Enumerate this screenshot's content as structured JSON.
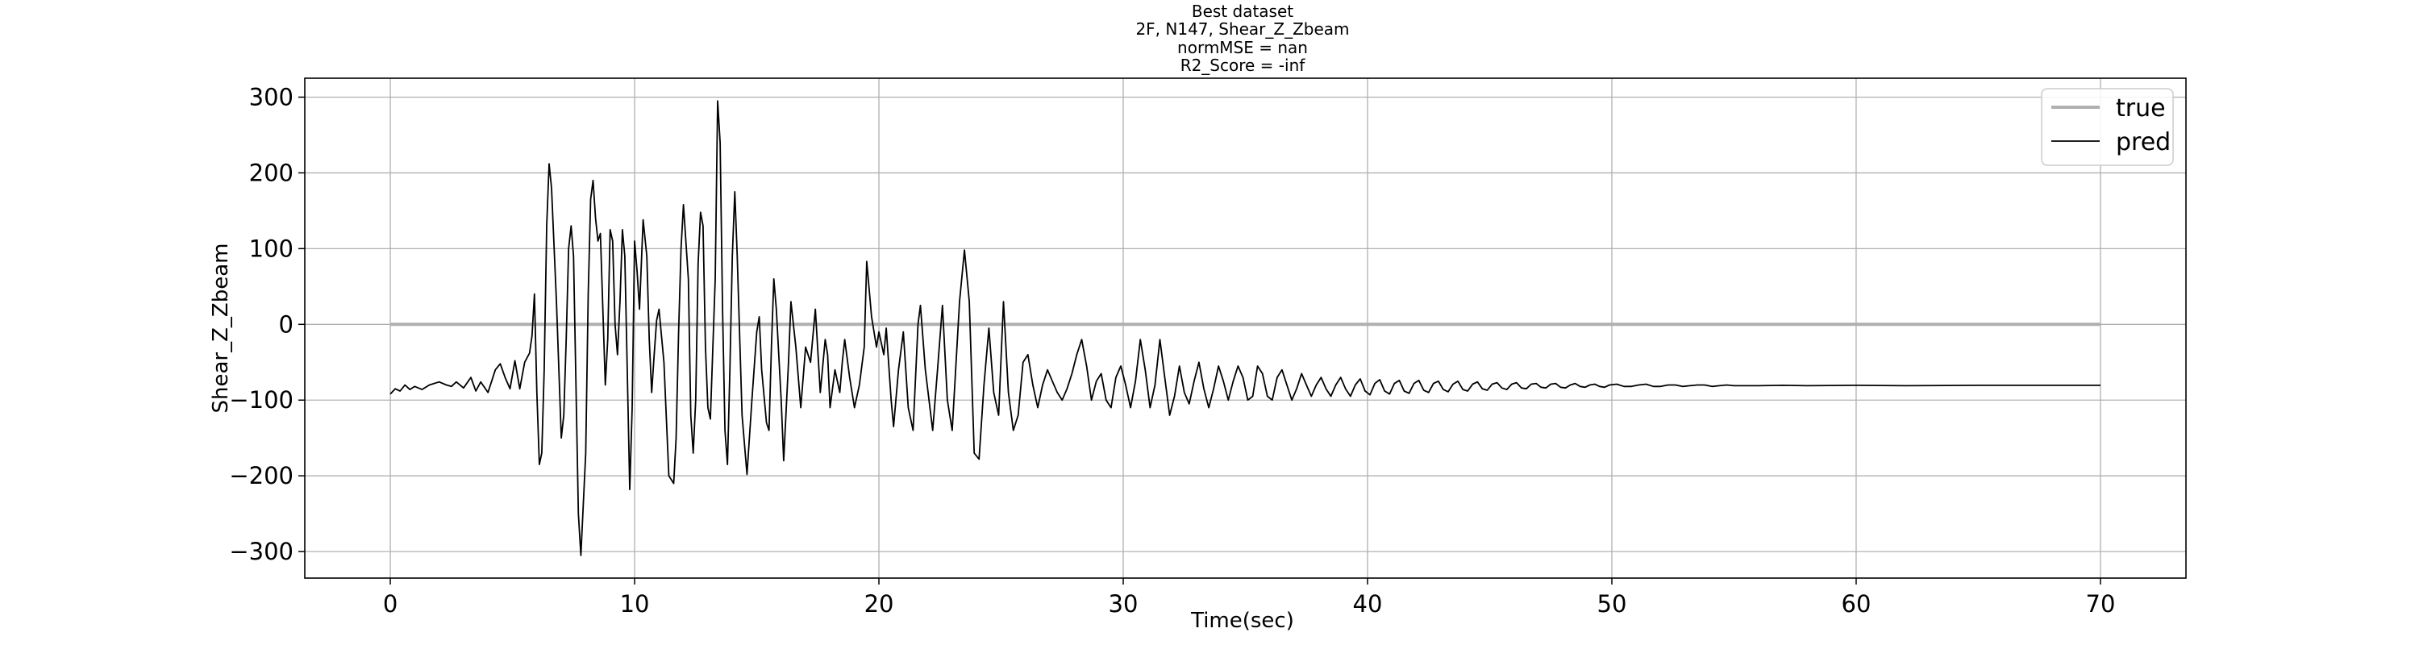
{
  "chart_data": {
    "type": "line",
    "title_lines": [
      "Best dataset",
      "2F, N147, Shear_Z_Zbeam",
      "normMSE = nan",
      "R2_Score = -inf"
    ],
    "xlabel": "Time(sec)",
    "ylabel": "Shear_Z_Zbeam",
    "xlim": [
      -3.5,
      73.5
    ],
    "ylim": [
      -335,
      325
    ],
    "xticks": [
      0,
      10,
      20,
      30,
      40,
      50,
      60,
      70
    ],
    "yticks": [
      -300,
      -200,
      -100,
      0,
      100,
      200,
      300
    ],
    "xtick_labels": [
      "0",
      "10",
      "20",
      "30",
      "40",
      "50",
      "60",
      "70"
    ],
    "ytick_labels": [
      "−300",
      "−200",
      "−100",
      "0",
      "100",
      "200",
      "300"
    ],
    "grid": true,
    "legend_position": "top-right",
    "series": [
      {
        "name": "true",
        "color": "#b0b0b0",
        "points": [
          [
            0,
            0
          ],
          [
            70,
            0
          ]
        ]
      },
      {
        "name": "pred",
        "color": "#000000",
        "points": [
          [
            0.0,
            -92
          ],
          [
            0.2,
            -85
          ],
          [
            0.4,
            -88
          ],
          [
            0.6,
            -80
          ],
          [
            0.8,
            -86
          ],
          [
            1.0,
            -82
          ],
          [
            1.3,
            -86
          ],
          [
            1.6,
            -80
          ],
          [
            2.0,
            -76
          ],
          [
            2.3,
            -80
          ],
          [
            2.5,
            -82
          ],
          [
            2.7,
            -76
          ],
          [
            3.0,
            -84
          ],
          [
            3.3,
            -70
          ],
          [
            3.5,
            -88
          ],
          [
            3.7,
            -76
          ],
          [
            4.0,
            -90
          ],
          [
            4.3,
            -60
          ],
          [
            4.5,
            -52
          ],
          [
            4.7,
            -70
          ],
          [
            4.9,
            -85
          ],
          [
            5.1,
            -48
          ],
          [
            5.3,
            -85
          ],
          [
            5.5,
            -50
          ],
          [
            5.7,
            -38
          ],
          [
            5.8,
            -15
          ],
          [
            5.9,
            40
          ],
          [
            6.0,
            -90
          ],
          [
            6.1,
            -185
          ],
          [
            6.2,
            -170
          ],
          [
            6.3,
            -60
          ],
          [
            6.4,
            130
          ],
          [
            6.5,
            212
          ],
          [
            6.6,
            180
          ],
          [
            6.8,
            30
          ],
          [
            7.0,
            -150
          ],
          [
            7.1,
            -120
          ],
          [
            7.2,
            -20
          ],
          [
            7.3,
            100
          ],
          [
            7.4,
            130
          ],
          [
            7.5,
            90
          ],
          [
            7.7,
            -250
          ],
          [
            7.8,
            -305
          ],
          [
            8.0,
            -170
          ],
          [
            8.1,
            40
          ],
          [
            8.2,
            165
          ],
          [
            8.3,
            190
          ],
          [
            8.4,
            140
          ],
          [
            8.5,
            110
          ],
          [
            8.6,
            120
          ],
          [
            8.8,
            -80
          ],
          [
            8.9,
            -20
          ],
          [
            9.0,
            125
          ],
          [
            9.1,
            110
          ],
          [
            9.2,
            0
          ],
          [
            9.3,
            -40
          ],
          [
            9.4,
            30
          ],
          [
            9.5,
            125
          ],
          [
            9.6,
            90
          ],
          [
            9.7,
            -60
          ],
          [
            9.8,
            -218
          ],
          [
            9.9,
            -110
          ],
          [
            10.0,
            110
          ],
          [
            10.1,
            70
          ],
          [
            10.2,
            20
          ],
          [
            10.35,
            138
          ],
          [
            10.5,
            90
          ],
          [
            10.6,
            -20
          ],
          [
            10.7,
            -90
          ],
          [
            10.8,
            -40
          ],
          [
            10.9,
            5
          ],
          [
            11.0,
            20
          ],
          [
            11.2,
            -50
          ],
          [
            11.4,
            -200
          ],
          [
            11.6,
            -210
          ],
          [
            11.7,
            -150
          ],
          [
            11.8,
            -10
          ],
          [
            11.9,
            100
          ],
          [
            12.0,
            158
          ],
          [
            12.2,
            60
          ],
          [
            12.3,
            -120
          ],
          [
            12.4,
            -170
          ],
          [
            12.5,
            -100
          ],
          [
            12.6,
            80
          ],
          [
            12.7,
            148
          ],
          [
            12.8,
            130
          ],
          [
            12.9,
            -30
          ],
          [
            13.0,
            -110
          ],
          [
            13.1,
            -125
          ],
          [
            13.3,
            60
          ],
          [
            13.4,
            295
          ],
          [
            13.5,
            240
          ],
          [
            13.6,
            20
          ],
          [
            13.7,
            -140
          ],
          [
            13.8,
            -185
          ],
          [
            13.9,
            -60
          ],
          [
            14.0,
            90
          ],
          [
            14.1,
            175
          ],
          [
            14.2,
            90
          ],
          [
            14.4,
            -120
          ],
          [
            14.6,
            -198
          ],
          [
            14.8,
            -100
          ],
          [
            15.0,
            -10
          ],
          [
            15.1,
            10
          ],
          [
            15.2,
            -60
          ],
          [
            15.4,
            -130
          ],
          [
            15.5,
            -140
          ],
          [
            15.6,
            -30
          ],
          [
            15.7,
            60
          ],
          [
            15.8,
            20
          ],
          [
            15.9,
            -40
          ],
          [
            16.0,
            -100
          ],
          [
            16.1,
            -180
          ],
          [
            16.3,
            -50
          ],
          [
            16.4,
            30
          ],
          [
            16.6,
            -30
          ],
          [
            16.8,
            -110
          ],
          [
            17.0,
            -30
          ],
          [
            17.2,
            -50
          ],
          [
            17.4,
            20
          ],
          [
            17.6,
            -90
          ],
          [
            17.8,
            -20
          ],
          [
            17.9,
            -40
          ],
          [
            18.0,
            -110
          ],
          [
            18.2,
            -60
          ],
          [
            18.4,
            -90
          ],
          [
            18.5,
            -50
          ],
          [
            18.6,
            -20
          ],
          [
            18.8,
            -70
          ],
          [
            19.0,
            -110
          ],
          [
            19.2,
            -80
          ],
          [
            19.4,
            -30
          ],
          [
            19.5,
            83
          ],
          [
            19.7,
            10
          ],
          [
            19.9,
            -30
          ],
          [
            20.0,
            -10
          ],
          [
            20.2,
            -40
          ],
          [
            20.3,
            -5
          ],
          [
            20.5,
            -100
          ],
          [
            20.6,
            -135
          ],
          [
            20.8,
            -60
          ],
          [
            21.0,
            -10
          ],
          [
            21.2,
            -110
          ],
          [
            21.4,
            -140
          ],
          [
            21.6,
            0
          ],
          [
            21.7,
            25
          ],
          [
            21.9,
            -60
          ],
          [
            22.2,
            -140
          ],
          [
            22.4,
            -60
          ],
          [
            22.6,
            25
          ],
          [
            22.8,
            -100
          ],
          [
            23.0,
            -140
          ],
          [
            23.3,
            30
          ],
          [
            23.5,
            98
          ],
          [
            23.7,
            30
          ],
          [
            23.9,
            -170
          ],
          [
            24.1,
            -178
          ],
          [
            24.3,
            -80
          ],
          [
            24.5,
            -5
          ],
          [
            24.7,
            -90
          ],
          [
            24.9,
            -120
          ],
          [
            25.1,
            30
          ],
          [
            25.3,
            -90
          ],
          [
            25.5,
            -140
          ],
          [
            25.7,
            -120
          ],
          [
            25.9,
            -50
          ],
          [
            26.1,
            -40
          ],
          [
            26.3,
            -80
          ],
          [
            26.5,
            -110
          ],
          [
            26.7,
            -80
          ],
          [
            26.9,
            -60
          ],
          [
            27.1,
            -75
          ],
          [
            27.3,
            -90
          ],
          [
            27.5,
            -100
          ],
          [
            27.7,
            -85
          ],
          [
            27.9,
            -65
          ],
          [
            28.1,
            -40
          ],
          [
            28.3,
            -20
          ],
          [
            28.5,
            -55
          ],
          [
            28.7,
            -100
          ],
          [
            28.9,
            -75
          ],
          [
            29.1,
            -65
          ],
          [
            29.3,
            -100
          ],
          [
            29.5,
            -110
          ],
          [
            29.7,
            -70
          ],
          [
            29.9,
            -55
          ],
          [
            30.1,
            -80
          ],
          [
            30.3,
            -110
          ],
          [
            30.5,
            -75
          ],
          [
            30.7,
            -20
          ],
          [
            30.9,
            -60
          ],
          [
            31.1,
            -110
          ],
          [
            31.3,
            -80
          ],
          [
            31.5,
            -20
          ],
          [
            31.7,
            -70
          ],
          [
            31.9,
            -120
          ],
          [
            32.1,
            -95
          ],
          [
            32.3,
            -55
          ],
          [
            32.5,
            -90
          ],
          [
            32.7,
            -105
          ],
          [
            32.9,
            -75
          ],
          [
            33.1,
            -50
          ],
          [
            33.3,
            -85
          ],
          [
            33.5,
            -110
          ],
          [
            33.7,
            -85
          ],
          [
            33.9,
            -55
          ],
          [
            34.1,
            -75
          ],
          [
            34.3,
            -100
          ],
          [
            34.5,
            -75
          ],
          [
            34.7,
            -55
          ],
          [
            34.9,
            -70
          ],
          [
            35.1,
            -100
          ],
          [
            35.3,
            -95
          ],
          [
            35.5,
            -55
          ],
          [
            35.7,
            -65
          ],
          [
            35.9,
            -95
          ],
          [
            36.1,
            -100
          ],
          [
            36.3,
            -70
          ],
          [
            36.5,
            -60
          ],
          [
            36.7,
            -80
          ],
          [
            36.9,
            -100
          ],
          [
            37.1,
            -85
          ],
          [
            37.3,
            -65
          ],
          [
            37.5,
            -80
          ],
          [
            37.7,
            -95
          ],
          [
            37.9,
            -80
          ],
          [
            38.1,
            -70
          ],
          [
            38.3,
            -85
          ],
          [
            38.5,
            -95
          ],
          [
            38.7,
            -80
          ],
          [
            38.9,
            -70
          ],
          [
            39.1,
            -85
          ],
          [
            39.3,
            -95
          ],
          [
            39.5,
            -80
          ],
          [
            39.7,
            -72
          ],
          [
            39.9,
            -88
          ],
          [
            40.1,
            -93
          ],
          [
            40.3,
            -78
          ],
          [
            40.5,
            -73
          ],
          [
            40.7,
            -88
          ],
          [
            40.9,
            -92
          ],
          [
            41.1,
            -78
          ],
          [
            41.3,
            -74
          ],
          [
            41.5,
            -88
          ],
          [
            41.7,
            -91
          ],
          [
            41.9,
            -78
          ],
          [
            42.1,
            -74
          ],
          [
            42.3,
            -87
          ],
          [
            42.5,
            -90
          ],
          [
            42.7,
            -78
          ],
          [
            42.9,
            -75
          ],
          [
            43.1,
            -86
          ],
          [
            43.3,
            -89
          ],
          [
            43.5,
            -79
          ],
          [
            43.7,
            -75
          ],
          [
            43.9,
            -86
          ],
          [
            44.1,
            -88
          ],
          [
            44.3,
            -79
          ],
          [
            44.5,
            -76
          ],
          [
            44.7,
            -85
          ],
          [
            44.9,
            -87
          ],
          [
            45.1,
            -79
          ],
          [
            45.3,
            -77
          ],
          [
            45.5,
            -84
          ],
          [
            45.7,
            -86
          ],
          [
            45.9,
            -79
          ],
          [
            46.1,
            -77
          ],
          [
            46.3,
            -84
          ],
          [
            46.5,
            -85
          ],
          [
            46.7,
            -79
          ],
          [
            46.9,
            -78
          ],
          [
            47.1,
            -83
          ],
          [
            47.3,
            -84
          ],
          [
            47.5,
            -79
          ],
          [
            47.7,
            -78
          ],
          [
            47.9,
            -83
          ],
          [
            48.1,
            -84
          ],
          [
            48.3,
            -80
          ],
          [
            48.5,
            -78
          ],
          [
            48.7,
            -82
          ],
          [
            48.9,
            -83
          ],
          [
            49.1,
            -80
          ],
          [
            49.3,
            -79
          ],
          [
            49.5,
            -82
          ],
          [
            49.7,
            -83
          ],
          [
            49.9,
            -80
          ],
          [
            50.2,
            -79
          ],
          [
            50.5,
            -82
          ],
          [
            50.8,
            -82
          ],
          [
            51.1,
            -80
          ],
          [
            51.4,
            -79
          ],
          [
            51.7,
            -82
          ],
          [
            52.0,
            -82
          ],
          [
            52.3,
            -80
          ],
          [
            52.6,
            -80
          ],
          [
            52.9,
            -82
          ],
          [
            53.2,
            -81
          ],
          [
            53.5,
            -80
          ],
          [
            53.8,
            -80
          ],
          [
            54.1,
            -82
          ],
          [
            54.4,
            -81
          ],
          [
            54.7,
            -80
          ],
          [
            55.0,
            -81
          ],
          [
            56.0,
            -81
          ],
          [
            57.0,
            -80.5
          ],
          [
            58.0,
            -81
          ],
          [
            60.0,
            -80.5
          ],
          [
            62.0,
            -81
          ],
          [
            65.0,
            -80.5
          ],
          [
            68.0,
            -80.5
          ],
          [
            70.0,
            -80.5
          ]
        ]
      }
    ]
  }
}
